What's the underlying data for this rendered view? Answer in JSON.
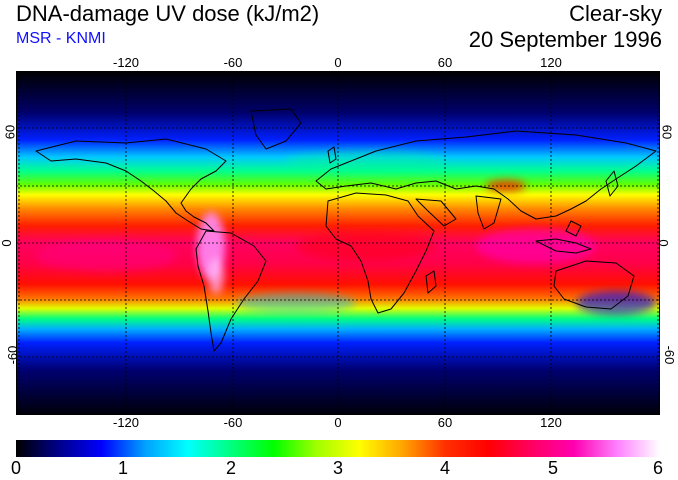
{
  "header": {
    "title": "DNA-damage UV dose (kJ/m2)",
    "source": "MSR - KNMI",
    "sky_condition": "Clear-sky",
    "date": "20 September 1996"
  },
  "map": {
    "projection": "equirectangular",
    "lon_range": [
      -180,
      180
    ],
    "lat_range": [
      -90,
      90
    ],
    "lon_ticks": [
      "-120",
      "-60",
      "0",
      "60",
      "120"
    ],
    "lat_ticks": [
      "60",
      "0",
      "-60"
    ],
    "gridlines": "dotted, every 30 degrees",
    "colors": {
      "frame": "#000000",
      "coastline": "#000000"
    }
  },
  "colorbar": {
    "min": 0,
    "max": 6,
    "labels": [
      "0",
      "1",
      "2",
      "3",
      "4",
      "5",
      "6"
    ],
    "stops": [
      "#000000",
      "#00008b",
      "#0000ff",
      "#00a0ff",
      "#00ffff",
      "#00ff80",
      "#00ff00",
      "#a0ff00",
      "#ffff00",
      "#ffa500",
      "#ff3000",
      "#ff0000",
      "#ff0060",
      "#ff00b0",
      "#ff80ff",
      "#ffffff"
    ]
  }
}
